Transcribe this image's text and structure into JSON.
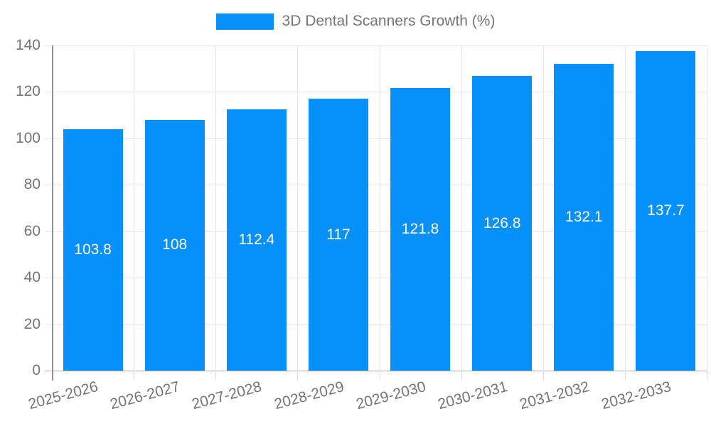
{
  "chart_data": {
    "type": "bar",
    "title": "3D Dental Scanners Growth (%)",
    "categories": [
      "2025-2026",
      "2026-2027",
      "2027-2028",
      "2028-2029",
      "2029-2030",
      "2030-2031",
      "2031-2032",
      "2032-2033"
    ],
    "values": [
      103.8,
      108,
      112.4,
      117,
      121.8,
      126.8,
      132.1,
      137.7
    ],
    "xlabel": "",
    "ylabel": "",
    "ylim": [
      0,
      140
    ],
    "yticks": [
      0,
      20,
      40,
      60,
      80,
      100,
      120,
      140
    ],
    "grid": true,
    "legend_position": "top-center",
    "x_label_rotation_deg": -15
  },
  "legend": {
    "label": "3D Dental Scanners Growth (%)"
  },
  "colors": {
    "bar": "#0690f9",
    "background": "#ffffff",
    "gridline": "#e6e6e6",
    "y_axis_line": "#8f8f8f",
    "x_axis_line": "#b0b0b0",
    "tick": "#dcdcdc",
    "axis_text": "#757575",
    "value_label_text": "#ffffff"
  }
}
